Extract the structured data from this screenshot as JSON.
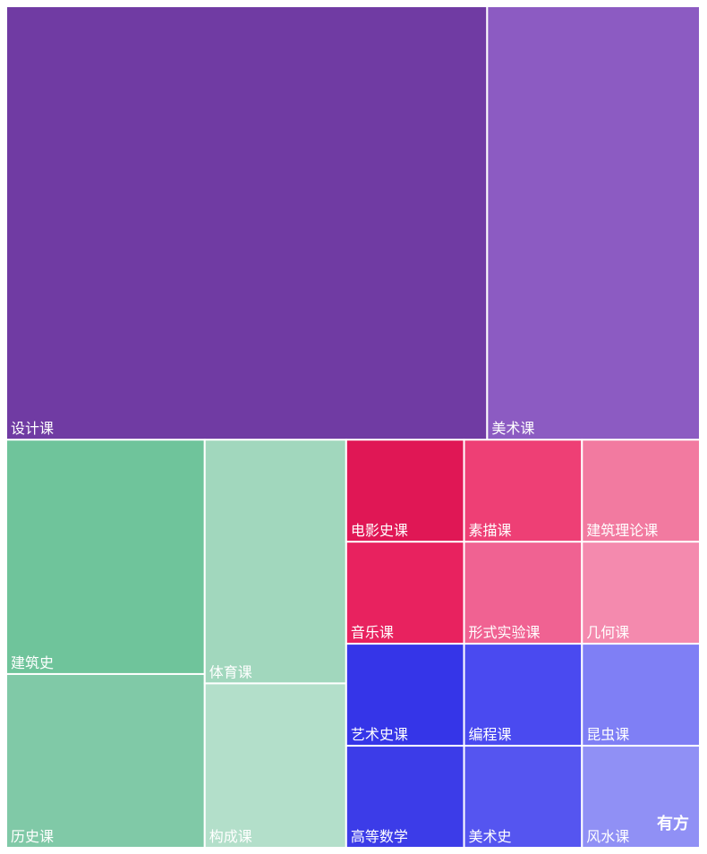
{
  "chart_data": {
    "type": "treemap",
    "categories": [
      "设计课",
      "美术课",
      "建筑史",
      "历史课",
      "体育课",
      "构成课",
      "电影史课",
      "素描课",
      "建筑理论课",
      "音乐课",
      "形式实验课",
      "几何课",
      "艺术史课",
      "编程课",
      "昆虫课",
      "高等数学",
      "美术史",
      "风水课"
    ],
    "values": [
      260,
      115,
      58,
      43,
      43,
      29,
      15,
      15,
      15,
      15,
      15,
      15,
      15,
      15,
      15,
      15,
      15,
      15
    ],
    "colors": [
      "#703ba3",
      "#8c5bc2",
      "#6fc49b",
      "#80c9a7",
      "#a1d7bd",
      "#b3dfca",
      "#e01755",
      "#ee3f75",
      "#f27aa0",
      "#e8225f",
      "#f06292",
      "#f48aae",
      "#3535e8",
      "#4a4af0",
      "#7f7ff5",
      "#3c3ce8",
      "#5555f0",
      "#9090f5"
    ],
    "watermark": "有方"
  }
}
